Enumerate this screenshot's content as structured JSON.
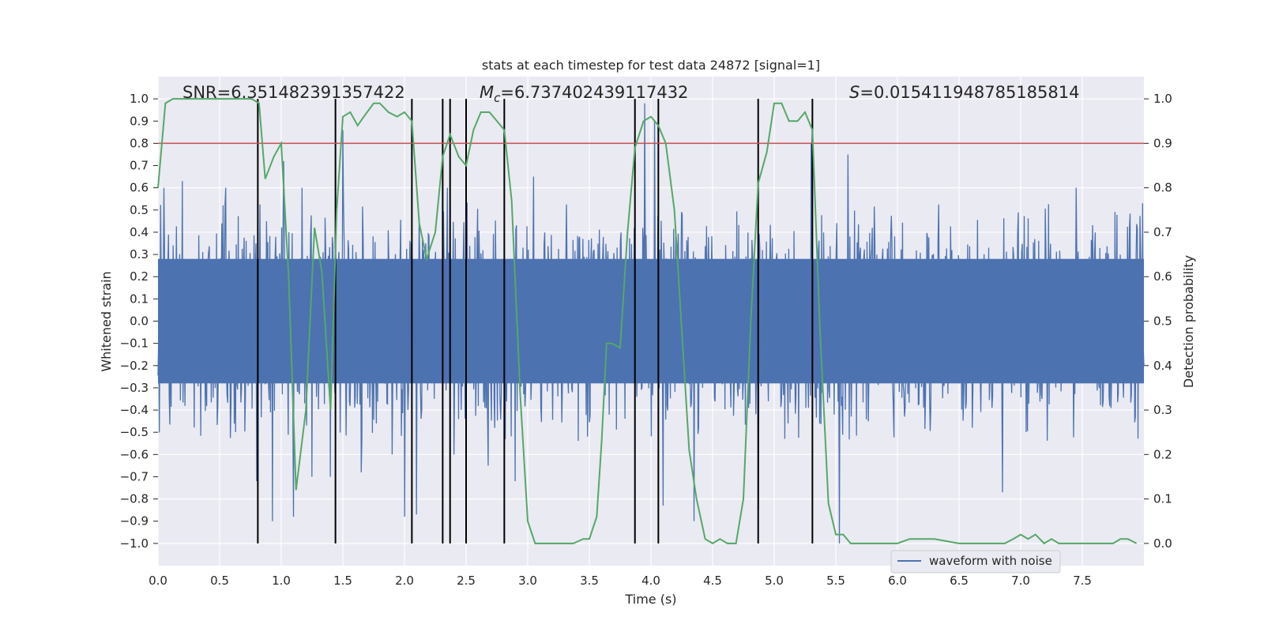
{
  "chart_data": {
    "type": "line",
    "title": "stats at each timestep for test data 24872 [signal=1]",
    "xlabel": "Time (s)",
    "ylabel": "Whitened strain",
    "y2label": "Detection probability",
    "xlim": [
      0,
      8.0
    ],
    "ylim": [
      -1.1,
      1.1
    ],
    "y2lim": [
      -0.05,
      1.05
    ],
    "xticks": [
      0.0,
      0.5,
      1.0,
      1.5,
      2.0,
      2.5,
      3.0,
      3.5,
      4.0,
      4.5,
      5.0,
      5.5,
      6.0,
      6.5,
      7.0,
      7.5
    ],
    "yticks": [
      -1.0,
      -0.9,
      -0.8,
      -0.7,
      -0.6,
      -0.5,
      -0.4,
      -0.3,
      -0.2,
      -0.1,
      0.0,
      0.1,
      0.2,
      0.3,
      0.4,
      0.5,
      0.6,
      0.7,
      0.8,
      0.9,
      1.0
    ],
    "y2ticks": [
      0.0,
      0.1,
      0.2,
      0.3,
      0.4,
      0.5,
      0.6,
      0.7,
      0.8,
      0.9,
      1.0
    ],
    "legend": [
      "waveform with noise"
    ],
    "legend_location": "lower-right",
    "annotations": {
      "snr": "SNR=6.351482391357422",
      "mc": "M",
      "mc_sub": "c",
      "mc_value": "=6.737402439117432",
      "s": "S",
      "s_value": "=0.015411948785185814"
    },
    "threshold": 0.9,
    "vertical_lines": [
      0.81,
      1.44,
      2.06,
      2.31,
      2.37,
      2.5,
      2.81,
      3.87,
      4.06,
      4.87,
      5.31
    ],
    "noise_series": {
      "name": "waveform with noise",
      "color": "#4c72b0",
      "n_points": 1500,
      "typical_envelope": 0.4,
      "peaks": [
        [
          0.05,
          0.6
        ],
        [
          0.2,
          0.63
        ],
        [
          0.55,
          0.6
        ],
        [
          0.8,
          -0.72
        ],
        [
          0.93,
          -0.9
        ],
        [
          1.02,
          0.72
        ],
        [
          1.1,
          -0.88
        ],
        [
          1.17,
          0.6
        ],
        [
          1.25,
          -0.7
        ],
        [
          1.4,
          -0.7
        ],
        [
          1.5,
          0.86
        ],
        [
          1.65,
          -0.68
        ],
        [
          1.9,
          -0.6
        ],
        [
          2.0,
          -0.88
        ],
        [
          2.1,
          -0.87
        ],
        [
          2.35,
          0.6
        ],
        [
          2.4,
          -0.6
        ],
        [
          2.68,
          -0.65
        ],
        [
          2.9,
          -0.72
        ],
        [
          3.05,
          0.65
        ],
        [
          3.95,
          0.98
        ],
        [
          4.03,
          0.9
        ],
        [
          4.1,
          -0.83
        ],
        [
          4.35,
          -0.9
        ],
        [
          4.87,
          -0.85
        ],
        [
          5.3,
          0.8
        ],
        [
          5.53,
          -1.0
        ],
        [
          5.6,
          0.75
        ],
        [
          6.85,
          -0.77
        ],
        [
          7.45,
          0.6
        ]
      ]
    },
    "probability_series": {
      "name": "detection probability",
      "color": "#55a868",
      "x": [
        0.0,
        0.06,
        0.12,
        0.3,
        0.5,
        0.7,
        0.76,
        0.82,
        0.87,
        0.94,
        1.0,
        1.06,
        1.12,
        1.2,
        1.27,
        1.33,
        1.4,
        1.45,
        1.5,
        1.56,
        1.62,
        1.67,
        1.75,
        1.8,
        1.87,
        1.94,
        2.0,
        2.06,
        2.12,
        2.18,
        2.25,
        2.31,
        2.37,
        2.44,
        2.5,
        2.56,
        2.62,
        2.69,
        2.75,
        2.81,
        2.87,
        2.94,
        3.0,
        3.06,
        3.12,
        3.25,
        3.37,
        3.45,
        3.5,
        3.56,
        3.6,
        3.64,
        3.68,
        3.75,
        3.81,
        3.87,
        3.94,
        4.0,
        4.06,
        4.12,
        4.19,
        4.25,
        4.31,
        4.37,
        4.44,
        4.5,
        4.56,
        4.62,
        4.69,
        4.75,
        4.81,
        4.87,
        4.94,
        5.0,
        5.06,
        5.12,
        5.19,
        5.25,
        5.31,
        5.37,
        5.44,
        5.5,
        5.56,
        5.62,
        5.69,
        5.75,
        5.81,
        5.9,
        6.0,
        6.1,
        6.19,
        6.3,
        6.5,
        6.7,
        6.87,
        6.94,
        7.0,
        7.06,
        7.12,
        7.19,
        7.25,
        7.31,
        7.4,
        7.5,
        7.6,
        7.69,
        7.75,
        7.81,
        7.87,
        7.94
      ],
      "y": [
        0.8,
        0.99,
        1.0,
        1.0,
        1.0,
        1.0,
        1.0,
        0.99,
        0.82,
        0.87,
        0.9,
        0.6,
        0.12,
        0.3,
        0.71,
        0.61,
        0.3,
        0.75,
        0.96,
        0.97,
        0.94,
        0.96,
        0.99,
        0.99,
        0.97,
        0.96,
        0.97,
        0.95,
        0.72,
        0.64,
        0.7,
        0.87,
        0.92,
        0.87,
        0.85,
        0.93,
        0.97,
        0.97,
        0.95,
        0.93,
        0.77,
        0.33,
        0.05,
        0.0,
        0.0,
        0.0,
        0.0,
        0.01,
        0.01,
        0.06,
        0.23,
        0.45,
        0.45,
        0.44,
        0.7,
        0.89,
        0.95,
        0.96,
        0.94,
        0.9,
        0.75,
        0.48,
        0.21,
        0.1,
        0.01,
        0.0,
        0.01,
        0.0,
        0.0,
        0.1,
        0.5,
        0.81,
        0.88,
        0.99,
        0.99,
        0.95,
        0.95,
        0.97,
        0.93,
        0.49,
        0.09,
        0.02,
        0.02,
        0.0,
        0.0,
        0.0,
        0.0,
        0.0,
        0.0,
        0.01,
        0.01,
        0.01,
        0.0,
        0.0,
        0.0,
        0.01,
        0.02,
        0.01,
        0.02,
        0.0,
        0.01,
        0.0,
        0.0,
        0.0,
        0.0,
        0.0,
        0.0,
        0.01,
        0.01,
        0.0
      ]
    }
  },
  "colors": {
    "plot_bg": "#eaeaf2",
    "grid": "#ffffff",
    "threshold": "#c44e52",
    "vline": "#000000"
  }
}
